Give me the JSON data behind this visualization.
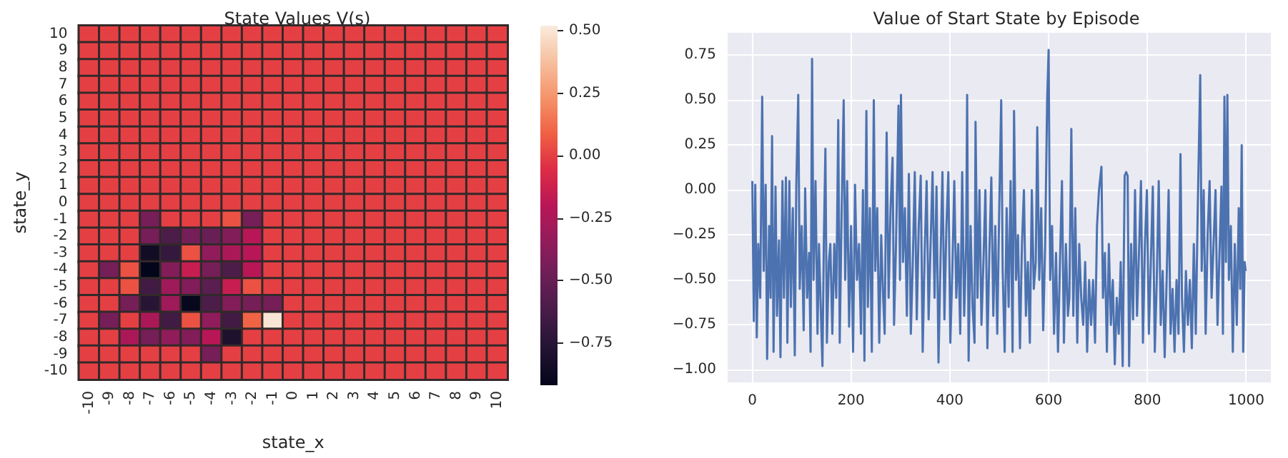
{
  "chart_data": [
    {
      "type": "heatmap",
      "title": "State Values V(s)",
      "xlabel": "state_x",
      "ylabel": "state_y",
      "categories": [
        "-10",
        "-9",
        "-8",
        "-7",
        "-6",
        "-5",
        "-4",
        "-3",
        "-2",
        "-1",
        "0",
        "1",
        "2",
        "3",
        "4",
        "5",
        "6",
        "7",
        "8",
        "9",
        "10"
      ],
      "y_categories": [
        "10",
        "9",
        "8",
        "7",
        "6",
        "5",
        "4",
        "3",
        "2",
        "1",
        "0",
        "-1",
        "-2",
        "-3",
        "-4",
        "-5",
        "-6",
        "-7",
        "-8",
        "-9",
        "-10"
      ],
      "cells": [
        [
          0,
          0,
          0,
          0,
          0,
          0,
          0,
          0,
          0,
          0,
          0,
          0,
          0,
          0,
          0,
          0,
          0,
          0,
          0,
          0,
          0
        ],
        [
          0,
          0,
          0,
          0,
          0,
          0,
          0,
          0,
          0,
          0,
          0,
          0,
          0,
          0,
          0,
          0,
          0,
          0,
          0,
          0,
          0
        ],
        [
          0,
          0,
          0,
          0,
          0,
          0,
          0,
          0,
          0,
          0,
          0,
          0,
          0,
          0,
          0,
          0,
          0,
          0,
          0,
          0,
          0
        ],
        [
          0,
          0,
          0,
          0,
          0,
          0,
          0,
          0,
          0,
          0,
          0,
          0,
          0,
          0,
          0,
          0,
          0,
          0,
          0,
          0,
          0
        ],
        [
          0,
          0,
          0,
          0,
          0,
          0,
          0,
          0,
          0,
          0,
          0,
          0,
          0,
          0,
          0,
          0,
          0,
          0,
          0,
          0,
          0
        ],
        [
          0,
          0,
          0,
          0,
          0,
          0,
          0,
          0,
          0,
          0,
          0,
          0,
          0,
          0,
          0,
          0,
          0,
          0,
          0,
          0,
          0
        ],
        [
          0,
          0,
          0,
          0,
          0,
          0,
          0,
          0,
          0,
          0,
          0,
          0,
          0,
          0,
          0,
          0,
          0,
          0,
          0,
          0,
          0
        ],
        [
          0,
          0,
          0,
          0,
          0,
          0,
          0,
          0,
          0,
          0,
          0,
          0,
          0,
          0,
          0,
          0,
          0,
          0,
          0,
          0,
          0
        ],
        [
          0,
          0,
          0,
          0,
          0,
          0,
          0,
          0,
          0,
          0,
          0,
          0,
          0,
          0,
          0,
          0,
          0,
          0,
          0,
          0,
          0
        ],
        [
          0,
          0,
          0,
          0,
          0,
          0,
          0,
          0,
          0,
          0,
          0,
          0,
          0,
          0,
          0,
          0,
          0,
          0,
          0,
          0,
          0
        ],
        [
          0,
          0,
          0,
          0,
          0,
          0,
          0,
          0,
          0,
          0,
          0,
          0,
          0,
          0,
          0,
          0,
          0,
          0,
          0,
          0,
          0
        ],
        [
          0,
          0,
          0,
          -0.45,
          0,
          0,
          0,
          0.05,
          -0.45,
          0,
          0,
          0,
          0,
          0,
          0,
          0,
          0,
          0,
          0,
          0,
          0
        ],
        [
          0,
          0,
          0,
          -0.45,
          -0.6,
          -0.45,
          -0.5,
          -0.4,
          -0.2,
          0,
          0,
          0,
          0,
          0,
          0,
          0,
          0,
          0,
          0,
          0,
          0
        ],
        [
          0,
          0,
          0,
          -0.85,
          -0.7,
          0.05,
          -0.35,
          -0.25,
          -0.2,
          0,
          0,
          0,
          0,
          0,
          0,
          0,
          0,
          0,
          0,
          0,
          0
        ],
        [
          0,
          -0.45,
          0.05,
          -0.92,
          -0.4,
          -0.15,
          -0.45,
          -0.6,
          -0.2,
          0,
          0,
          0,
          0,
          0,
          0,
          0,
          0,
          0,
          0,
          0,
          0
        ],
        [
          0,
          0,
          0.05,
          -0.65,
          -0.3,
          -0.4,
          -0.55,
          -0.15,
          0.05,
          0,
          0,
          0,
          0,
          0,
          0,
          0,
          0,
          0,
          0,
          0,
          0
        ],
        [
          0,
          0,
          -0.45,
          -0.75,
          -0.3,
          -0.9,
          -0.6,
          -0.4,
          -0.45,
          -0.45,
          0,
          0,
          0,
          0,
          0,
          0,
          0,
          0,
          0,
          0,
          0
        ],
        [
          0,
          -0.45,
          0,
          -0.25,
          -0.65,
          0.05,
          -0.35,
          -0.65,
          0.1,
          0.5,
          0,
          0,
          0,
          0,
          0,
          0,
          0,
          0,
          0,
          0,
          0
        ],
        [
          0,
          0,
          -0.25,
          -0.45,
          -0.35,
          -0.4,
          -0.2,
          -0.8,
          0,
          0,
          0,
          0,
          0,
          0,
          0,
          0,
          0,
          0,
          0,
          0,
          0
        ],
        [
          0,
          0,
          0,
          0,
          0,
          0,
          -0.45,
          0,
          0,
          0,
          0,
          0,
          0,
          0,
          0,
          0,
          0,
          0,
          0,
          0,
          0
        ],
        [
          0,
          0,
          0,
          0,
          0,
          0,
          0,
          0,
          0,
          0,
          0,
          0,
          0,
          0,
          0,
          0,
          0,
          0,
          0,
          0,
          0
        ]
      ],
      "clim": [
        -0.92,
        0.52
      ],
      "cticks": [
        {
          "value": 0.5,
          "label": "0.50"
        },
        {
          "value": 0.25,
          "label": "0.25"
        },
        {
          "value": 0,
          "label": "0.00"
        },
        {
          "value": -0.25,
          "label": "−0.25"
        },
        {
          "value": -0.5,
          "label": "−0.50"
        },
        {
          "value": -0.75,
          "label": "−0.75"
        }
      ]
    },
    {
      "type": "line",
      "title": "Value of Start State by Episode",
      "grid": true,
      "xlim": [
        -50,
        1050
      ],
      "ylim": [
        -1.07,
        0.875
      ],
      "xticks": [
        0,
        200,
        400,
        600,
        800,
        1000
      ],
      "yticks": [
        {
          "value": -1,
          "label": "−1.00"
        },
        {
          "value": -0.75,
          "label": "−0.75"
        },
        {
          "value": -0.5,
          "label": "−0.50"
        },
        {
          "value": -0.25,
          "label": "−0.25"
        },
        {
          "value": 0,
          "label": "0.00"
        },
        {
          "value": 0.25,
          "label": "0.25"
        },
        {
          "value": 0.5,
          "label": "0.50"
        },
        {
          "value": 0.75,
          "label": "0.75"
        }
      ],
      "series": [
        {
          "color": "#4c72b0",
          "x": [
            0,
            3,
            6,
            9,
            12,
            16,
            20,
            23,
            27,
            30,
            34,
            37,
            40,
            43,
            47,
            50,
            54,
            57,
            61,
            64,
            68,
            71,
            75,
            78,
            82,
            86,
            89,
            93,
            96,
            100,
            104,
            107,
            111,
            115,
            118,
            121,
            124,
            128,
            132,
            135,
            138,
            142,
            145,
            148,
            151,
            155,
            158,
            162,
            166,
            170,
            174,
            177,
            181,
            185,
            188,
            192,
            196,
            200,
            204,
            208,
            212,
            216,
            220,
            224,
            227,
            231,
            234,
            238,
            242,
            246,
            249,
            253,
            257,
            261,
            265,
            268,
            272,
            276,
            280,
            284,
            287,
            291,
            296,
            299,
            301,
            305,
            309,
            313,
            317,
            321,
            325,
            329,
            333,
            337,
            341,
            345,
            349,
            353,
            357,
            361,
            365,
            369,
            373,
            377,
            381,
            385,
            389,
            393,
            397,
            401,
            405,
            409,
            413,
            417,
            421,
            425,
            429,
            433,
            435,
            438,
            442,
            446,
            450,
            452,
            456,
            460,
            464,
            468,
            472,
            476,
            480,
            484,
            488,
            492,
            496,
            500,
            504,
            507,
            511,
            515,
            519,
            523,
            527,
            530,
            534,
            538,
            542,
            546,
            550,
            554,
            558,
            562,
            566,
            570,
            574,
            577,
            581,
            585,
            589,
            593,
            597,
            600,
            603,
            607,
            611,
            615,
            619,
            623,
            627,
            631,
            635,
            639,
            642,
            646,
            650,
            654,
            658,
            662,
            666,
            670,
            674,
            678,
            682,
            686,
            690,
            694,
            698,
            702,
            707,
            710,
            714,
            718,
            722,
            726,
            730,
            734,
            738,
            742,
            746,
            750,
            754,
            757,
            760,
            763,
            767,
            771,
            775,
            779,
            783,
            787,
            791,
            795,
            799,
            803,
            807,
            811,
            815,
            819,
            823,
            827,
            831,
            835,
            839,
            843,
            847,
            851,
            855,
            859,
            863,
            867,
            870,
            874,
            878,
            882,
            886,
            890,
            894,
            898,
            902,
            907,
            910,
            914,
            918,
            922,
            926,
            930,
            934,
            938,
            942,
            946,
            950,
            953,
            956,
            959,
            962,
            965,
            969,
            973,
            977,
            981,
            985,
            988,
            991,
            994,
            997,
            999
          ],
          "values": [
            0.05,
            -0.73,
            0.03,
            -0.82,
            -0.3,
            -0.6,
            0.52,
            -0.45,
            0.03,
            -0.94,
            -0.2,
            -0.6,
            0.3,
            -0.9,
            0.02,
            -0.7,
            -0.28,
            -0.93,
            0.05,
            -0.6,
            0.07,
            -0.85,
            0.05,
            -0.65,
            -0.1,
            -0.92,
            0.02,
            0.53,
            -0.55,
            -0.2,
            -0.78,
            0.01,
            -0.6,
            -0.35,
            -0.9,
            0.73,
            -0.5,
            0.05,
            -0.8,
            -0.3,
            -0.6,
            -0.98,
            -0.25,
            0.23,
            -0.85,
            -0.4,
            -0.3,
            -0.8,
            -0.3,
            -0.6,
            0.39,
            -0.85,
            -0.1,
            0.5,
            -0.5,
            0.05,
            -0.76,
            -0.2,
            -0.9,
            0.03,
            -0.5,
            -0.3,
            -0.8,
            0,
            -0.95,
            0.44,
            -0.65,
            -0.1,
            -0.9,
            0.5,
            -0.45,
            -0.1,
            -0.85,
            -0.25,
            -0.6,
            -0.8,
            0.32,
            -0.6,
            -0.1,
            0.18,
            -0.75,
            -0.3,
            0.47,
            -0.5,
            0.53,
            -0.4,
            -0.1,
            -0.7,
            0.09,
            -0.8,
            -0.4,
            0.1,
            -0.72,
            -0.2,
            0.08,
            -0.9,
            -0.35,
            0.05,
            -0.72,
            -0.3,
            0.1,
            -0.6,
            0.02,
            -0.96,
            -0.4,
            0.1,
            -0.72,
            -0.2,
            0.1,
            -0.85,
            -0.45,
            0.05,
            -0.6,
            -0.3,
            -0.8,
            0.1,
            -0.7,
            -0.3,
            0.53,
            -0.95,
            -0.2,
            -0.65,
            -0.85,
            0.38,
            -0.6,
            0,
            -0.75,
            -0.4,
            0,
            -0.88,
            -0.35,
            0.07,
            -0.7,
            -0.2,
            -0.8,
            -0.1,
            0.5,
            -0.45,
            -0.9,
            -0.1,
            -0.65,
            0.05,
            -0.9,
            0.44,
            -0.5,
            -0.25,
            -0.88,
            -0.3,
            0,
            -0.7,
            -0.4,
            -0.85,
            0,
            -0.55,
            -0.4,
            0.35,
            -0.5,
            -0.1,
            -0.78,
            -0.3,
            0.5,
            0.78,
            -0.5,
            -0.2,
            -0.8,
            -0.35,
            -0.9,
            -0.4,
            0.05,
            -0.85,
            -0.3,
            -0.7,
            -0.6,
            0.34,
            -0.7,
            -0.1,
            -0.85,
            -0.3,
            -0.6,
            -0.75,
            -0.4,
            -0.9,
            -0.5,
            -0.75,
            -0.5,
            -0.85,
            -0.2,
            0,
            0.13,
            -0.6,
            -0.35,
            -0.9,
            -0.3,
            -0.75,
            -0.5,
            -0.97,
            -0.6,
            -0.8,
            -0.4,
            -0.98,
            0.08,
            0.1,
            0.08,
            -0.98,
            -0.3,
            -0.72,
            0,
            -0.7,
            -0.35,
            0.05,
            -0.85,
            -0.3,
            0,
            -0.8,
            -0.4,
            0.02,
            -0.9,
            -0.5,
            0.05,
            -0.75,
            -0.45,
            -0.93,
            -0.5,
            0,
            -0.8,
            -0.55,
            -0.9,
            -0.5,
            -0.8,
            0.2,
            -0.6,
            -0.9,
            -0.45,
            -0.75,
            -0.5,
            -0.88,
            -0.3,
            -0.8,
            -0.1,
            0.64,
            -0.45,
            0,
            -0.8,
            -0.25,
            0.05,
            -0.6,
            -0.3,
            0,
            -0.75,
            -0.35,
            0.02,
            -0.8,
            0.52,
            -0.4,
            0.53,
            -0.5,
            -0.2,
            -0.9,
            -0.3,
            -0.75,
            -0.1,
            -0.55,
            0.25,
            -0.9,
            -0.4,
            -0.45
          ]
        }
      ]
    }
  ]
}
